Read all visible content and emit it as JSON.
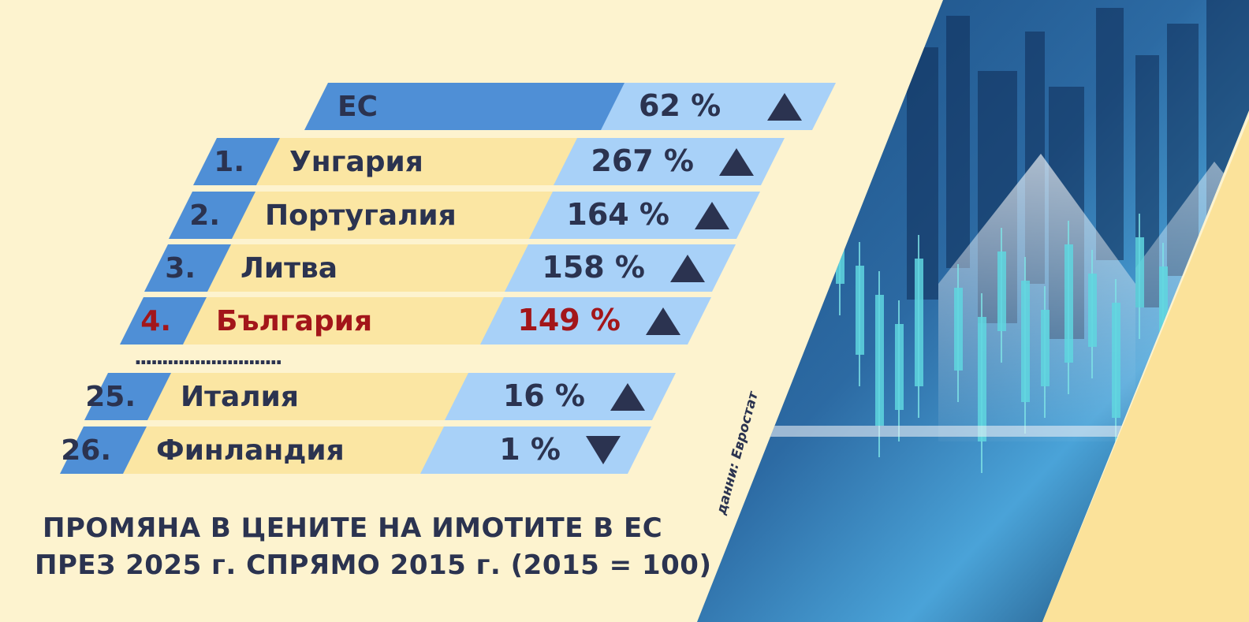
{
  "chart_data": {
    "type": "table",
    "title_lines": [
      "ПРОМЯНА В ЦЕНИТЕ НА ИМОТИТЕ В ЕС",
      "ПРЕЗ 2025 г. СПРЯМО 2015 г.  (2015 = 100)"
    ],
    "source": "данни: Евростат",
    "unit": "%",
    "rows": [
      {
        "rank": "",
        "country": "ЕС",
        "value": 62,
        "label": "62 %",
        "direction": "up",
        "highlight": false,
        "is_total": true
      },
      {
        "rank": "1.",
        "country": "Унгария",
        "value": 267,
        "label": "267 %",
        "direction": "up",
        "highlight": false
      },
      {
        "rank": "2.",
        "country": "Португалия",
        "value": 164,
        "label": "164 %",
        "direction": "up",
        "highlight": false
      },
      {
        "rank": "3.",
        "country": "Литва",
        "value": 158,
        "label": "158 %",
        "direction": "up",
        "highlight": false
      },
      {
        "rank": "4.",
        "country": "България",
        "value": 149,
        "label": "149 %",
        "direction": "up",
        "highlight": true
      },
      {
        "rank": "25.",
        "country": "Италия",
        "value": 16,
        "label": "16 %",
        "direction": "up",
        "highlight": false
      },
      {
        "rank": "26.",
        "country": "Финландия",
        "value": 1,
        "label": "1 %",
        "direction": "down",
        "highlight": false
      }
    ],
    "separator": "..........................."
  },
  "colors": {
    "background": "#fdf3cf",
    "rank_cell": "#4f8fd6",
    "country_cell": "#fbe6a3",
    "value_cell": "#a8d1f8",
    "text": "#2b3350",
    "highlight": "#a3161a",
    "photo_dark": "#0d2a4f",
    "photo_light": "#6fc8f0"
  }
}
